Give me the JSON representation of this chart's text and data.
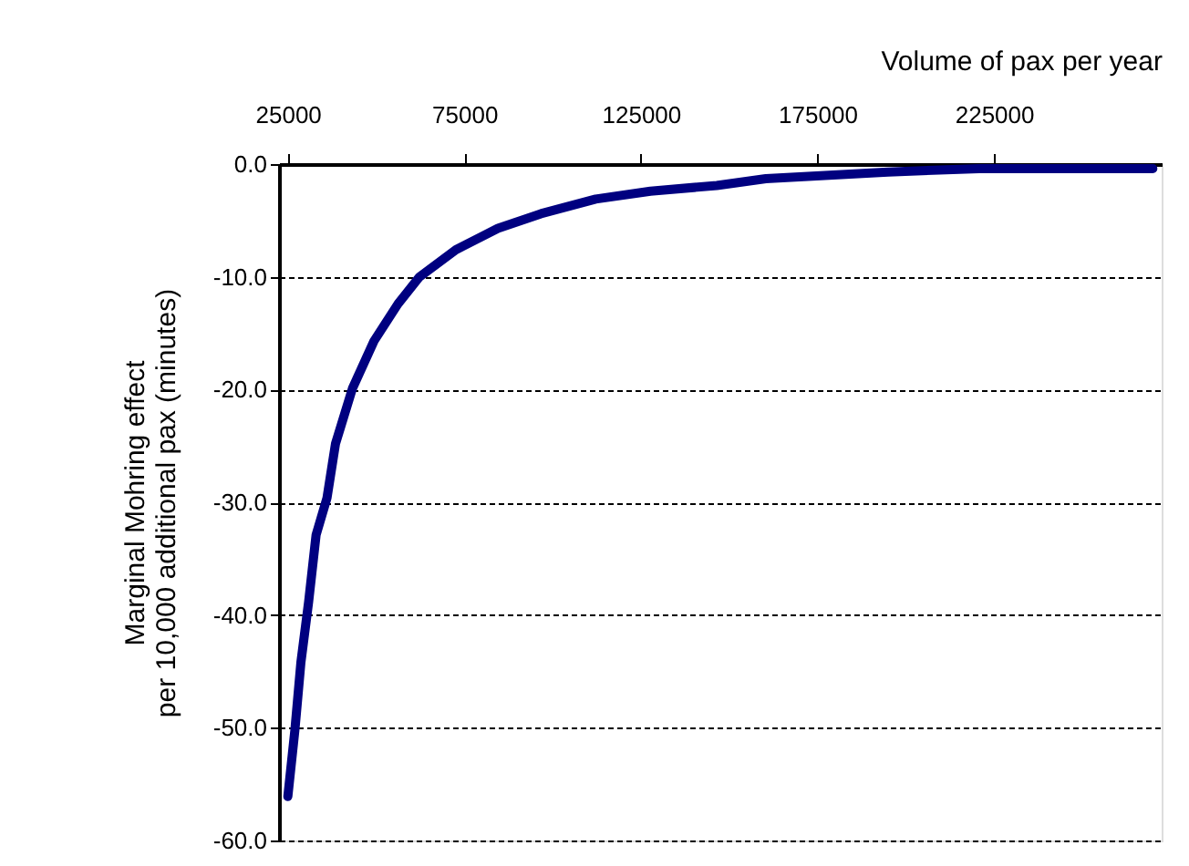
{
  "chart_data": {
    "type": "line",
    "xlabel": "Volume of pax per year",
    "ylabel": "Marginal Mohring effect\nper 10,000 additional pax (minutes)",
    "x": [
      25000,
      27000,
      28700,
      30900,
      33000,
      36100,
      38500,
      43300,
      49400,
      56200,
      62300,
      72600,
      84500,
      96700,
      112200,
      127700,
      146500,
      160400,
      195000,
      220800,
      270000
    ],
    "series": [
      {
        "color": "#000080",
        "values": [
          -56.1,
          -50.2,
          -44.2,
          -38.8,
          -32.9,
          -29.6,
          -24.8,
          -19.9,
          -15.7,
          -12.4,
          -10.0,
          -7.6,
          -5.7,
          -4.4,
          -3.1,
          -2.4,
          -1.9,
          -1.3,
          -0.7,
          -0.4,
          -0.4
        ]
      }
    ],
    "xlim": [
      22500,
      272500
    ],
    "xticks": [
      25000,
      75000,
      125000,
      175000,
      225000
    ],
    "ylim": [
      -60,
      0
    ],
    "yticks": [
      {
        "value": 0,
        "label": "0.0"
      },
      {
        "value": -10,
        "label": "-10.0"
      },
      {
        "value": -20,
        "label": "-20.0"
      },
      {
        "value": -30,
        "label": "-30.0"
      },
      {
        "value": -40,
        "label": "-40.0"
      },
      {
        "value": -50,
        "label": "-50.0"
      },
      {
        "value": -60,
        "label": "-60.0"
      }
    ],
    "grid": "y",
    "line_style": "solid",
    "marker": "none"
  }
}
